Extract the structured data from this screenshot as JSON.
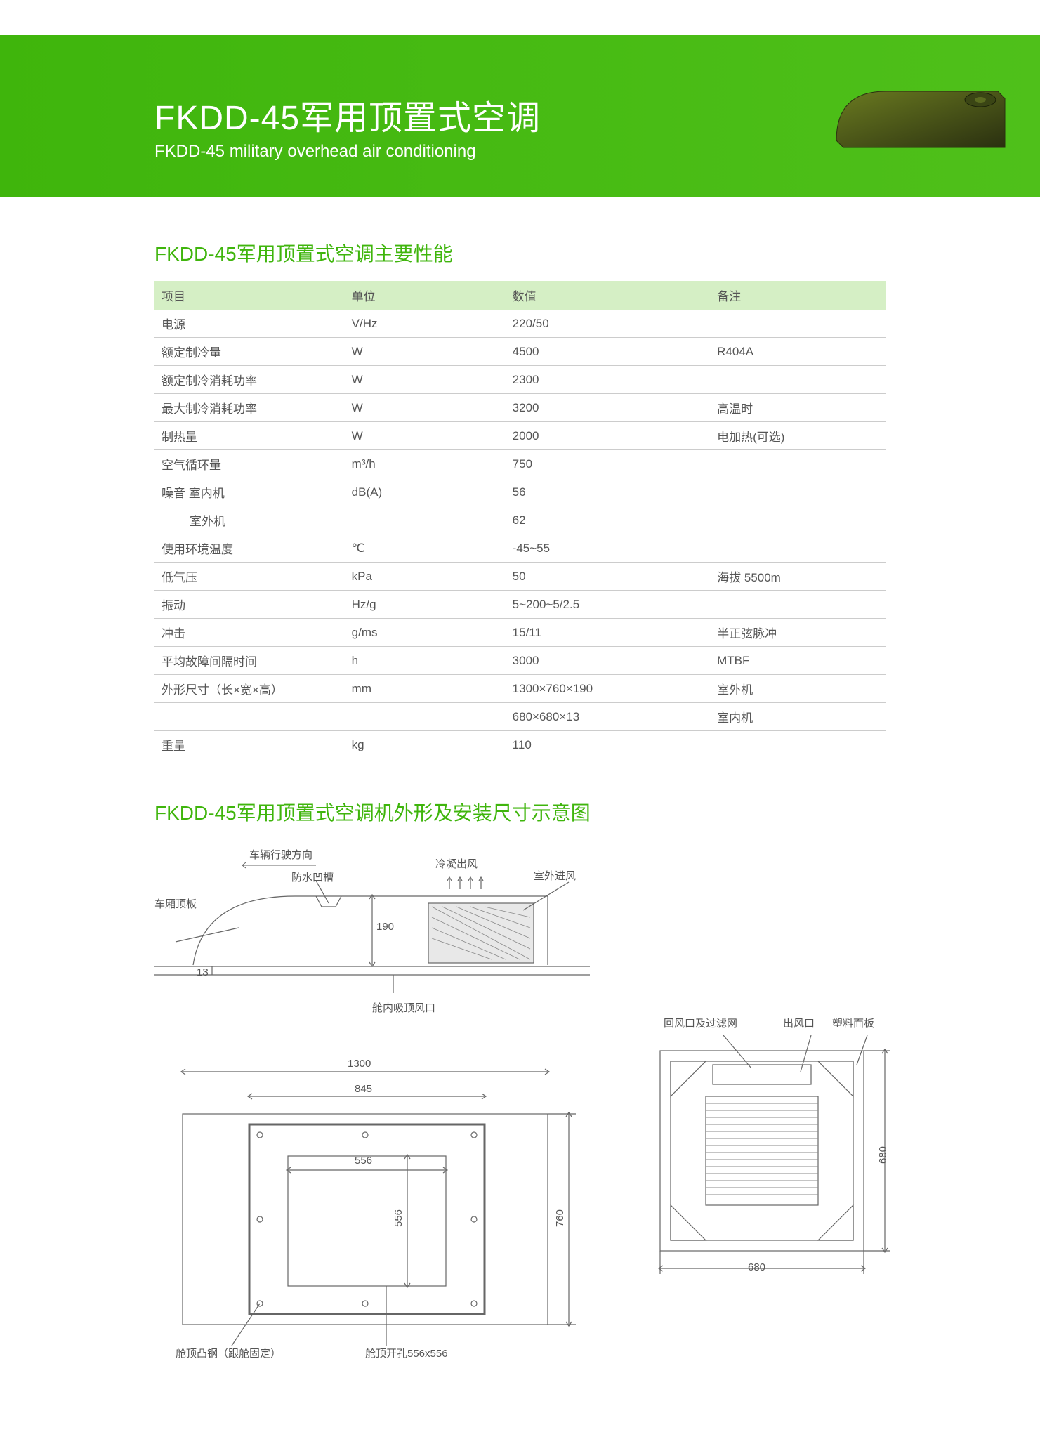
{
  "banner": {
    "title_cn": "FKDD-45军用顶置式空调",
    "title_en": "FKDD-45 military overhead air conditioning",
    "bg_color": "#3fb50c"
  },
  "spec_section": {
    "title": "FKDD-45军用顶置式空调主要性能",
    "title_color": "#3fb50c",
    "header_bg": "#d5efc5",
    "columns": [
      "项目",
      "单位",
      "数值",
      "备注"
    ],
    "rows": [
      {
        "item": "电源",
        "unit": "V/Hz",
        "value": "220/50",
        "note": ""
      },
      {
        "item": "额定制冷量",
        "unit": "W",
        "value": "4500",
        "note": "R404A"
      },
      {
        "item": "额定制冷消耗功率",
        "unit": "W",
        "value": "2300",
        "note": ""
      },
      {
        "item": "最大制冷消耗功率",
        "unit": "W",
        "value": "3200",
        "note": "高温时"
      },
      {
        "item": "制热量",
        "unit": "W",
        "value": "2000",
        "note": "电加热(可选)"
      },
      {
        "item": "空气循环量",
        "unit": "m³/h",
        "value": "750",
        "note": ""
      },
      {
        "item": "噪音  室内机",
        "unit": "dB(A)",
        "value": "56",
        "note": ""
      },
      {
        "item": "室外机",
        "indent": true,
        "unit": "",
        "value": "62",
        "note": ""
      },
      {
        "item": "使用环境温度",
        "unit": "℃",
        "value": "-45~55",
        "note": ""
      },
      {
        "item": "低气压",
        "unit": "kPa",
        "value": "50",
        "note": "海拔 5500m"
      },
      {
        "item": "振动",
        "unit": "Hz/g",
        "value": "5~200~5/2.5",
        "note": ""
      },
      {
        "item": "冲击",
        "unit": "g/ms",
        "value": "15/11",
        "note": "半正弦脉冲"
      },
      {
        "item": "平均故障间隔时间",
        "unit": "h",
        "value": "3000",
        "note": "MTBF"
      },
      {
        "item": "外形尺寸（长×宽×高）",
        "unit": "mm",
        "value": "1300×760×190",
        "note": "室外机"
      },
      {
        "item": "",
        "unit": "",
        "value": "680×680×13",
        "note": "室内机"
      },
      {
        "item": "重量",
        "unit": "kg",
        "value": "110",
        "note": ""
      }
    ]
  },
  "diagram_section": {
    "title": "FKDD-45军用顶置式空调机外形及安装尺寸示意图",
    "labels": {
      "direction": "车辆行驶方向",
      "waterproof": "防水凹槽",
      "roof_panel": "车厢顶板",
      "condensate_out": "冷凝出风",
      "outdoor_in": "室外进风",
      "ceiling_vent": "舱内吸顶风口",
      "return_air": "回风口及过滤网",
      "outlet": "出风口",
      "plastic_panel": "塑料面板",
      "roof_steel": "舱顶凸钢（跟舱固定）",
      "roof_hole": "舱顶开孔556x556"
    },
    "dimensions": {
      "h190": "190",
      "h13": "13",
      "w1300": "1300",
      "w845": "845",
      "w556": "556",
      "h556": "556",
      "h760": "760",
      "w680": "680",
      "h680": "680"
    },
    "colors": {
      "line": "#666666",
      "fill_light": "#f5f5f5"
    }
  }
}
